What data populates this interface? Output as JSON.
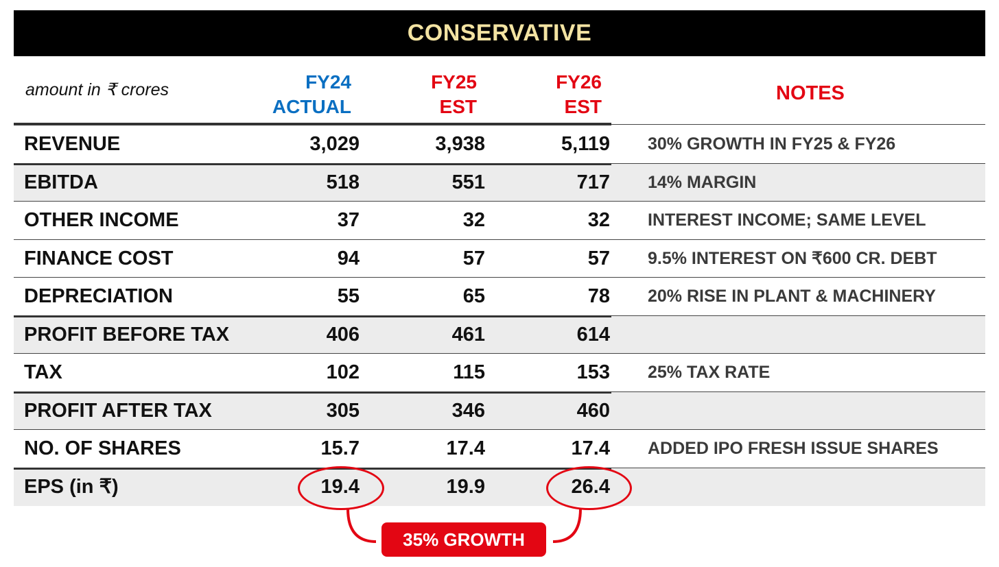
{
  "title": "CONSERVATIVE",
  "unit_label": "amount in ₹ crores",
  "columns": [
    {
      "line1": "FY24",
      "line2": "ACTUAL",
      "color": "#0a6fc2"
    },
    {
      "line1": "FY25",
      "line2": "EST",
      "color": "#e30613"
    },
    {
      "line1": "FY26",
      "line2": "EST",
      "color": "#e30613"
    }
  ],
  "notes_header": "NOTES",
  "rows": [
    {
      "label": "REVENUE",
      "values": [
        "3,029",
        "3,938",
        "5,119"
      ],
      "note": "30% GROWTH IN FY25 & FY26"
    },
    {
      "label": "EBITDA",
      "values": [
        "518",
        "551",
        "717"
      ],
      "note": "14% MARGIN"
    },
    {
      "label": "OTHER INCOME",
      "values": [
        "37",
        "32",
        "32"
      ],
      "note": "INTEREST INCOME; SAME LEVEL"
    },
    {
      "label": "FINANCE COST",
      "values": [
        "94",
        "57",
        "57"
      ],
      "note": "9.5% INTEREST ON ₹600 CR. DEBT"
    },
    {
      "label": "DEPRECIATION",
      "values": [
        "55",
        "65",
        "78"
      ],
      "note": "20% RISE IN PLANT & MACHINERY"
    },
    {
      "label": "PROFIT BEFORE TAX",
      "values": [
        "406",
        "461",
        "614"
      ],
      "note": ""
    },
    {
      "label": "TAX",
      "values": [
        "102",
        "115",
        "153"
      ],
      "note": "25% TAX RATE"
    },
    {
      "label": "PROFIT AFTER TAX",
      "values": [
        "305",
        "346",
        "460"
      ],
      "note": ""
    },
    {
      "label": "NO. OF SHARES",
      "values": [
        "15.7",
        "17.4",
        "17.4"
      ],
      "note": "ADDED IPO FRESH ISSUE SHARES"
    },
    {
      "label": "EPS (in ₹)",
      "values": [
        "19.4",
        "19.9",
        "26.4"
      ],
      "note": ""
    }
  ],
  "growth_callout": "35% GROWTH",
  "accent_color": "#e30613",
  "title_color": "#f3e3a2"
}
